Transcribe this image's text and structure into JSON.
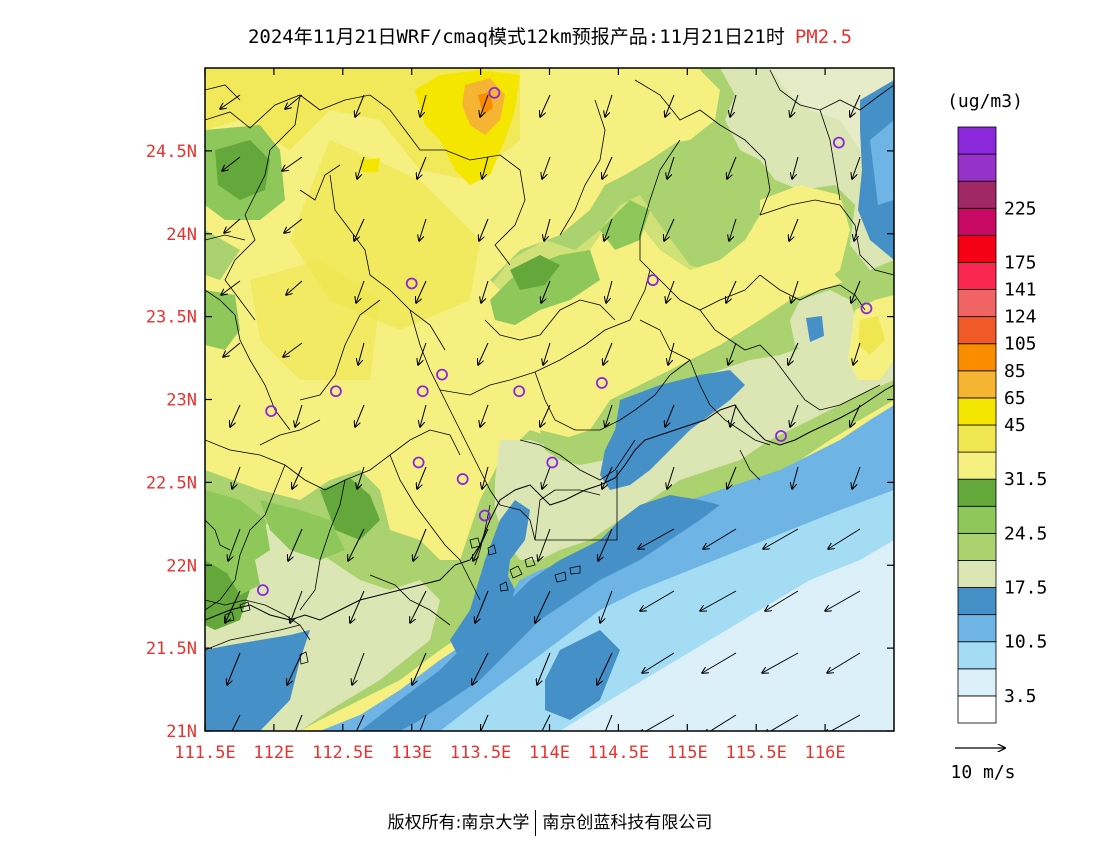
{
  "title": {
    "main": "2024年11月21日WRF/cmaq模式12km预报产品:11月21日21时",
    "pollutant": "PM2.5"
  },
  "map": {
    "lon_range": [
      111.5,
      116.5
    ],
    "lat_range": [
      21.0,
      25.0
    ],
    "lon_ticks": [
      {
        "value": 111.5,
        "label": "111.5E"
      },
      {
        "value": 112,
        "label": "112E"
      },
      {
        "value": 112.5,
        "label": "112.5E"
      },
      {
        "value": 113,
        "label": "113E"
      },
      {
        "value": 113.5,
        "label": "113.5E"
      },
      {
        "value": 114,
        "label": "114E"
      },
      {
        "value": 114.5,
        "label": "114.5E"
      },
      {
        "value": 115,
        "label": "115E"
      },
      {
        "value": 115.5,
        "label": "115.5E"
      },
      {
        "value": 116,
        "label": "116E"
      }
    ],
    "lat_ticks": [
      {
        "value": 21,
        "label": "21N"
      },
      {
        "value": 21.5,
        "label": "21.5N"
      },
      {
        "value": 22,
        "label": "22N"
      },
      {
        "value": 22.5,
        "label": "22.5N"
      },
      {
        "value": 23,
        "label": "23N"
      },
      {
        "value": 23.5,
        "label": "23.5N"
      },
      {
        "value": 24,
        "label": "24N"
      },
      {
        "value": 24.5,
        "label": "24.5N"
      }
    ],
    "stations": [
      [
        113.6,
        24.85
      ],
      [
        116.1,
        24.55
      ],
      [
        113.0,
        23.7
      ],
      [
        114.75,
        23.72
      ],
      [
        116.3,
        23.55
      ],
      [
        112.45,
        23.05
      ],
      [
        113.08,
        23.05
      ],
      [
        113.22,
        23.15
      ],
      [
        113.78,
        23.05
      ],
      [
        114.38,
        23.1
      ],
      [
        111.98,
        22.93
      ],
      [
        113.05,
        22.62
      ],
      [
        113.37,
        22.52
      ],
      [
        114.02,
        22.62
      ],
      [
        115.68,
        22.78
      ],
      [
        113.53,
        22.3
      ],
      [
        111.92,
        21.85
      ]
    ]
  },
  "legend": {
    "unit": "(ug/m3)",
    "colors": [
      "#ffffff",
      "#dcf0fa",
      "#a4dcf4",
      "#6eb4e4",
      "#4690c8",
      "#dce6b4",
      "#aad26e",
      "#8ec85a",
      "#64a83c",
      "#f5f080",
      "#f0e650",
      "#f5e600",
      "#f5b432",
      "#fa8c00",
      "#f05a28",
      "#f06464",
      "#fa2850",
      "#f50014",
      "#c80a64",
      "#a02864",
      "#9632c8",
      "#8c28dc"
    ],
    "labels": [
      {
        "index": 1,
        "label": "3.5"
      },
      {
        "index": 3,
        "label": "10.5"
      },
      {
        "index": 5,
        "label": "17.5"
      },
      {
        "index": 7,
        "label": "24.5"
      },
      {
        "index": 9,
        "label": "31.5"
      },
      {
        "index": 11,
        "label": "45"
      },
      {
        "index": 12,
        "label": "65"
      },
      {
        "index": 13,
        "label": "85"
      },
      {
        "index": 14,
        "label": "105"
      },
      {
        "index": 15,
        "label": "124"
      },
      {
        "index": 16,
        "label": "141"
      },
      {
        "index": 17,
        "label": "175"
      },
      {
        "index": 19,
        "label": "225"
      }
    ]
  },
  "wind": {
    "reference_label": "10 m/s"
  },
  "footer": {
    "left": "版权所有:南京大学",
    "right": "南京创蓝科技有限公司"
  }
}
